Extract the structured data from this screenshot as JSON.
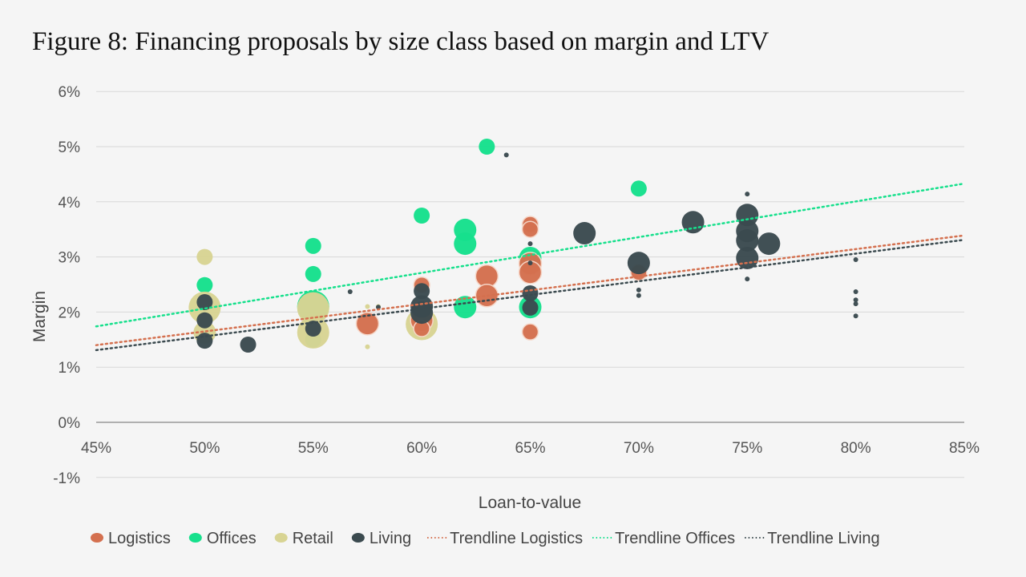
{
  "title": "Figure 8: Financing proposals by size class based on margin and LTV",
  "chart_data": {
    "type": "scatter",
    "subtype": "bubble",
    "title": "Figure 8: Financing proposals by size class based on margin and LTV",
    "xlabel": "Loan-to-value",
    "ylabel": "Margin",
    "xlim": [
      45,
      85
    ],
    "ylim": [
      -1,
      6
    ],
    "xticks": [
      45,
      50,
      55,
      60,
      65,
      70,
      75,
      80,
      85
    ],
    "yticks": [
      -1,
      0,
      1,
      2,
      3,
      4,
      5,
      6
    ],
    "x_tick_labels": [
      "45%",
      "50%",
      "55%",
      "60%",
      "65%",
      "70%",
      "75%",
      "80%",
      "85%"
    ],
    "y_tick_labels": [
      "-1%",
      "0%",
      "1%",
      "2%",
      "3%",
      "4%",
      "5%",
      "6%"
    ],
    "grid": "horizontal",
    "legend_position": "bottom",
    "size_note_units": "relative size class 1-4",
    "series": [
      {
        "name": "Logistics",
        "color": "#d4704f",
        "points": [
          [
            57.5,
            1.79,
            3
          ],
          [
            60,
            2.49,
            2
          ],
          [
            60,
            1.85,
            3
          ],
          [
            60,
            1.7,
            2
          ],
          [
            63,
            2.65,
            3
          ],
          [
            63,
            2.3,
            3
          ],
          [
            65,
            3.59,
            2
          ],
          [
            65,
            3.5,
            2
          ],
          [
            65,
            2.88,
            3
          ],
          [
            65,
            2.72,
            3
          ],
          [
            65,
            1.64,
            2
          ],
          [
            70,
            2.72,
            2
          ]
        ]
      },
      {
        "name": "Offices",
        "color": "#16e08c",
        "points": [
          [
            50,
            2.49,
            2
          ],
          [
            55,
            3.2,
            2
          ],
          [
            55,
            2.69,
            2
          ],
          [
            55,
            2.1,
            4
          ],
          [
            55,
            1.5,
            2
          ],
          [
            60,
            3.75,
            2
          ],
          [
            62,
            3.49,
            3
          ],
          [
            62,
            3.24,
            3
          ],
          [
            62,
            2.09,
            3
          ],
          [
            63,
            5.0,
            2
          ],
          [
            65,
            2.98,
            3
          ],
          [
            65,
            2.09,
            3
          ],
          [
            70,
            4.24,
            2
          ]
        ]
      },
      {
        "name": "Retail",
        "color": "#d8d493",
        "points": [
          [
            50,
            3.0,
            2
          ],
          [
            50,
            2.08,
            4
          ],
          [
            50,
            1.63,
            3
          ],
          [
            55,
            2.07,
            4
          ],
          [
            55,
            1.63,
            4
          ],
          [
            57.5,
            1.37,
            1
          ],
          [
            57.5,
            2.1,
            1
          ],
          [
            58,
            2.1,
            1
          ],
          [
            60,
            1.78,
            4
          ]
        ]
      },
      {
        "name": "Living",
        "color": "#3b4a4f",
        "points": [
          [
            50,
            2.18,
            2
          ],
          [
            50,
            1.85,
            2
          ],
          [
            50,
            1.48,
            2
          ],
          [
            52,
            1.41,
            2
          ],
          [
            55,
            1.7,
            2
          ],
          [
            56.7,
            2.37,
            1
          ],
          [
            58,
            2.09,
            1
          ],
          [
            60,
            2.38,
            2
          ],
          [
            60,
            1.99,
            3
          ],
          [
            60,
            2.1,
            3
          ],
          [
            63.9,
            4.85,
            1
          ],
          [
            65,
            3.24,
            1
          ],
          [
            65,
            2.89,
            1
          ],
          [
            65,
            2.34,
            2
          ],
          [
            65,
            2.08,
            2
          ],
          [
            67.5,
            3.43,
            3
          ],
          [
            70,
            2.89,
            3
          ],
          [
            70,
            2.4,
            1
          ],
          [
            70,
            2.3,
            1
          ],
          [
            72.5,
            3.63,
            3
          ],
          [
            75,
            4.14,
            1
          ],
          [
            75,
            3.76,
            3
          ],
          [
            75,
            3.47,
            3
          ],
          [
            75,
            3.3,
            3
          ],
          [
            75,
            2.98,
            3
          ],
          [
            76,
            3.24,
            3
          ],
          [
            75,
            2.6,
            1
          ],
          [
            80,
            2.95,
            1
          ],
          [
            80,
            2.37,
            1
          ],
          [
            80,
            2.22,
            1
          ],
          [
            80,
            2.15,
            1
          ],
          [
            80,
            1.93,
            1
          ]
        ]
      }
    ],
    "trendlines": [
      {
        "name": "Trendline Logistics",
        "color": "#d4704f",
        "x": [
          45,
          85
        ],
        "y": [
          1.4,
          3.39
        ]
      },
      {
        "name": "Trendline Offices",
        "color": "#16e08c",
        "x": [
          45,
          85
        ],
        "y": [
          1.74,
          4.33
        ]
      },
      {
        "name": "Trendline Living",
        "color": "#3b4a4f",
        "x": [
          45,
          85
        ],
        "y": [
          1.31,
          3.31
        ]
      }
    ]
  }
}
